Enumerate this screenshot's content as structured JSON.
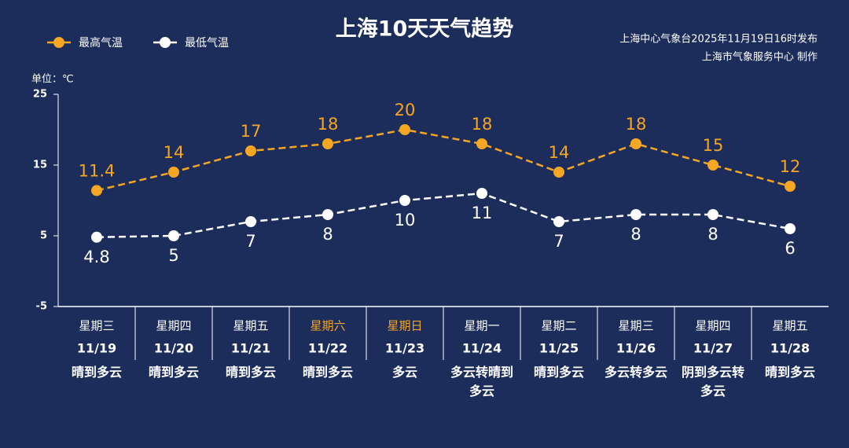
{
  "chart_data": {
    "type": "line",
    "title": "上海10天天气趋势",
    "source": [
      "上海中心气象台2025年11月19日16时发布",
      "上海市气象服务中心 制作"
    ],
    "unit_label": "单位：℃",
    "categories": [
      "11/19",
      "11/20",
      "11/21",
      "11/22",
      "11/23",
      "11/24",
      "11/25",
      "11/26",
      "11/27",
      "11/28"
    ],
    "weekdays": [
      "星期三",
      "星期四",
      "星期五",
      "星期六",
      "星期日",
      "星期一",
      "星期二",
      "星期三",
      "星期四",
      "星期五"
    ],
    "weekday_colors": [
      "#ffffff",
      "#ffffff",
      "#ffffff",
      "#f5a623",
      "#f5a623",
      "#ffffff",
      "#ffffff",
      "#ffffff",
      "#ffffff",
      "#ffffff"
    ],
    "weather": [
      "晴到多云",
      "晴到多云",
      "晴到多云",
      "晴到多云",
      "多云",
      "多云转晴到多云",
      "晴到多云",
      "多云转多云",
      "阴到多云转多云",
      "晴到多云"
    ],
    "series": [
      {
        "name": "最高气温",
        "color": "#f5a623",
        "values": [
          11.4,
          14,
          17,
          18,
          20,
          18,
          14,
          18,
          15,
          12
        ]
      },
      {
        "name": "最低气温",
        "color": "#ffffff",
        "values": [
          4.8,
          5,
          7,
          8,
          10,
          11,
          7,
          8,
          8,
          6
        ]
      }
    ],
    "ylim": [
      -5,
      25
    ],
    "yticks": [
      -5,
      5,
      15,
      25
    ],
    "grid": false
  }
}
